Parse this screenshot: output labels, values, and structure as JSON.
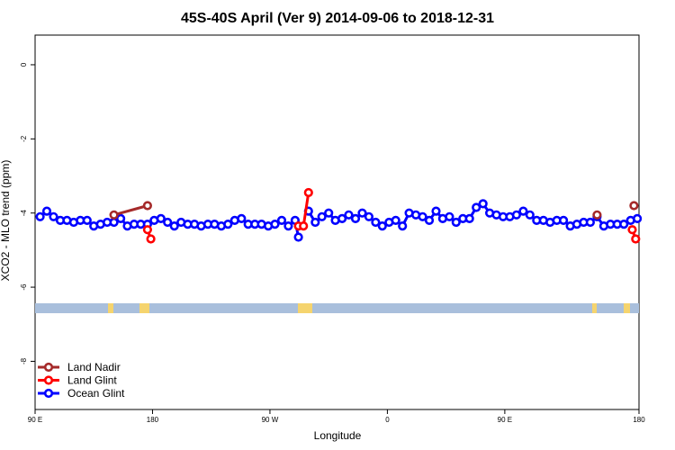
{
  "chart_data": {
    "type": "line",
    "title": "45S-40S April (Ver 9)   2014-09-06 to 2018-12-31",
    "xlabel": "Longitude",
    "ylabel": "XCO2 - MLO trend (ppm)",
    "xlim": [
      90,
      450
    ],
    "ylim": [
      -9.3,
      0.8
    ],
    "x_ticks": [
      {
        "value": 90,
        "label": "90 E"
      },
      {
        "value": 160,
        "label": "180"
      },
      {
        "value": 230,
        "label": "90 W"
      },
      {
        "value": 300,
        "label": "0"
      },
      {
        "value": 370,
        "label": "90 E"
      },
      {
        "value": 450,
        "label": "180"
      }
    ],
    "y_ticks": [
      0,
      -2,
      -4,
      -6,
      -8
    ],
    "legend_position": "bottom-left",
    "series": [
      {
        "name": "Land Nadir",
        "color": "#a52a2a",
        "segments": [
          [
            [
              137,
              -4.05
            ],
            [
              157,
              -3.8
            ]
          ],
          [
            [
              425,
              -4.05
            ]
          ],
          [
            [
              447,
              -3.8
            ]
          ]
        ]
      },
      {
        "name": "Land Glint",
        "color": "#ff0000",
        "segments": [
          [
            [
              157,
              -4.45
            ],
            [
              159,
              -4.7
            ]
          ],
          [
            [
              247,
              -4.35
            ],
            [
              250,
              -4.35
            ],
            [
              253,
              -3.45
            ]
          ],
          [
            [
              446,
              -4.45
            ],
            [
              448,
              -4.7
            ]
          ]
        ]
      },
      {
        "name": "Ocean Glint",
        "color": "#0000ff",
        "segments": [
          [
            [
              93,
              -4.1
            ],
            [
              97,
              -3.95
            ],
            [
              101,
              -4.1
            ],
            [
              105,
              -4.2
            ],
            [
              109,
              -4.2
            ],
            [
              113,
              -4.25
            ],
            [
              117,
              -4.2
            ],
            [
              121,
              -4.2
            ],
            [
              125,
              -4.35
            ],
            [
              129,
              -4.3
            ],
            [
              133,
              -4.25
            ],
            [
              137,
              -4.25
            ],
            [
              141,
              -4.15
            ],
            [
              145,
              -4.35
            ],
            [
              149,
              -4.3
            ],
            [
              153,
              -4.3
            ],
            [
              157,
              -4.3
            ],
            [
              161,
              -4.2
            ],
            [
              165,
              -4.15
            ],
            [
              169,
              -4.25
            ],
            [
              173,
              -4.35
            ],
            [
              177,
              -4.25
            ],
            [
              181,
              -4.3
            ],
            [
              185,
              -4.3
            ],
            [
              189,
              -4.35
            ],
            [
              193,
              -4.3
            ],
            [
              197,
              -4.3
            ],
            [
              201,
              -4.35
            ],
            [
              205,
              -4.3
            ],
            [
              209,
              -4.2
            ],
            [
              213,
              -4.15
            ],
            [
              217,
              -4.3
            ],
            [
              221,
              -4.3
            ],
            [
              225,
              -4.3
            ],
            [
              229,
              -4.35
            ],
            [
              233,
              -4.3
            ],
            [
              237,
              -4.2
            ],
            [
              241,
              -4.35
            ],
            [
              245,
              -4.2
            ],
            [
              247,
              -4.65
            ]
          ],
          [
            [
              253,
              -3.95
            ],
            [
              257,
              -4.25
            ],
            [
              261,
              -4.1
            ],
            [
              265,
              -4.0
            ],
            [
              269,
              -4.2
            ],
            [
              273,
              -4.15
            ],
            [
              277,
              -4.05
            ],
            [
              281,
              -4.15
            ],
            [
              285,
              -4.0
            ],
            [
              289,
              -4.1
            ],
            [
              293,
              -4.25
            ],
            [
              297,
              -4.35
            ],
            [
              301,
              -4.25
            ],
            [
              305,
              -4.2
            ],
            [
              309,
              -4.35
            ],
            [
              313,
              -4.0
            ],
            [
              317,
              -4.05
            ],
            [
              321,
              -4.1
            ],
            [
              325,
              -4.2
            ],
            [
              329,
              -3.95
            ],
            [
              333,
              -4.15
            ],
            [
              337,
              -4.1
            ],
            [
              341,
              -4.25
            ],
            [
              345,
              -4.15
            ],
            [
              349,
              -4.15
            ],
            [
              353,
              -3.85
            ],
            [
              357,
              -3.75
            ],
            [
              361,
              -4.0
            ],
            [
              365,
              -4.05
            ],
            [
              369,
              -4.1
            ],
            [
              373,
              -4.1
            ],
            [
              377,
              -4.05
            ],
            [
              381,
              -3.95
            ],
            [
              385,
              -4.05
            ],
            [
              389,
              -4.2
            ],
            [
              393,
              -4.2
            ],
            [
              397,
              -4.25
            ],
            [
              401,
              -4.2
            ],
            [
              405,
              -4.2
            ],
            [
              409,
              -4.35
            ],
            [
              413,
              -4.3
            ],
            [
              417,
              -4.25
            ],
            [
              421,
              -4.25
            ],
            [
              425,
              -4.1
            ],
            [
              429,
              -4.35
            ],
            [
              433,
              -4.3
            ],
            [
              437,
              -4.3
            ],
            [
              441,
              -4.3
            ],
            [
              445,
              -4.2
            ],
            [
              449,
              -4.15
            ]
          ]
        ]
      }
    ]
  }
}
